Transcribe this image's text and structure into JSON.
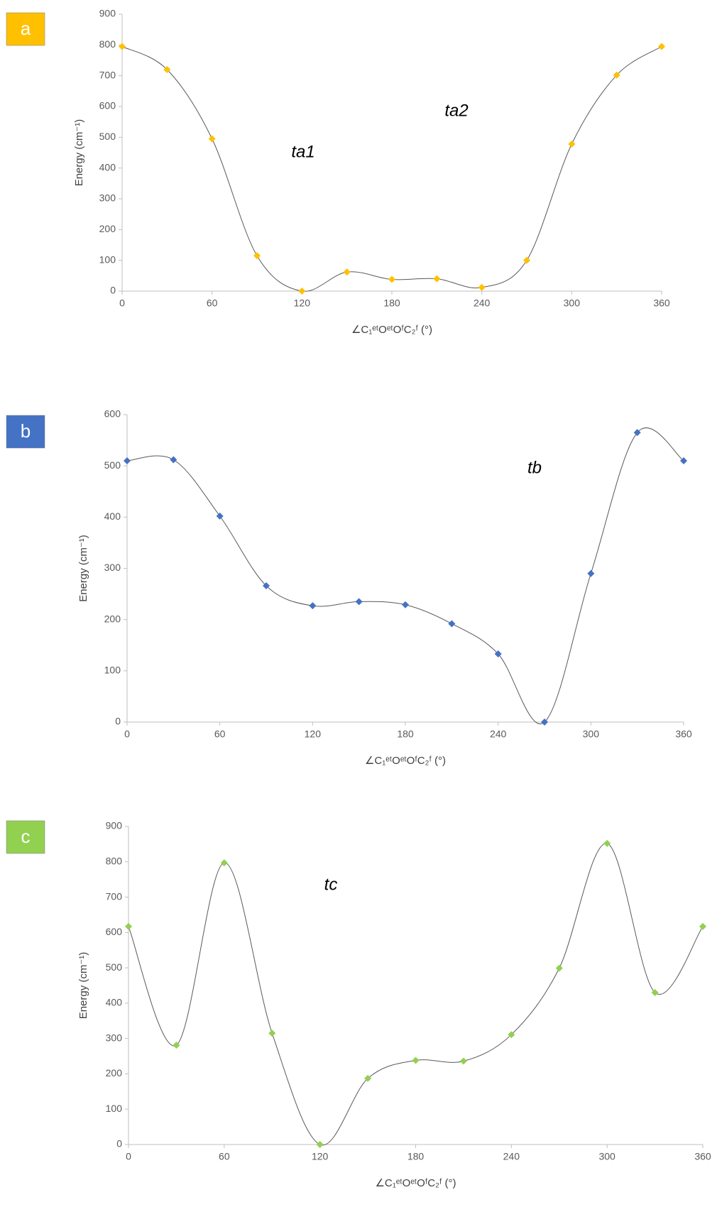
{
  "chart_data": [
    {
      "type": "line",
      "panel_label": "a",
      "annotations": [
        "ta1",
        "ta2"
      ],
      "y_label": "Energy (cm⁻¹)",
      "x_label": "∠C₁ᵉᵗOᵉᵗOᶠC₂ᶠ  (°)",
      "x": [
        0,
        30,
        60,
        90,
        120,
        150,
        180,
        210,
        240,
        270,
        300,
        330,
        360
      ],
      "values": [
        795,
        720,
        495,
        115,
        0,
        62,
        38,
        40,
        12,
        100,
        478,
        702,
        795
      ],
      "color": "#ffc000",
      "xlim": [
        0,
        360
      ],
      "xticks": [
        0,
        60,
        120,
        180,
        240,
        300,
        360
      ],
      "ylim": [
        0,
        900
      ],
      "yticks": [
        0,
        100,
        200,
        300,
        400,
        500,
        600,
        700,
        800,
        900
      ]
    },
    {
      "type": "line",
      "panel_label": "b",
      "annotations": [
        "tb"
      ],
      "y_label": "Energy (cm⁻¹)",
      "x_label": "∠C₁ᵉᵗOᵉᵗOᶠC₂ᶠ  (°)",
      "x": [
        0,
        30,
        60,
        90,
        120,
        150,
        180,
        210,
        240,
        270,
        300,
        330,
        360
      ],
      "values": [
        510,
        512,
        402,
        266,
        227,
        235,
        229,
        192,
        133,
        0,
        290,
        565,
        510
      ],
      "color": "#4472c4",
      "xlim": [
        0,
        360
      ],
      "xticks": [
        0,
        60,
        120,
        180,
        240,
        300,
        360
      ],
      "ylim": [
        0,
        600
      ],
      "yticks": [
        0,
        100,
        200,
        300,
        400,
        500,
        600
      ]
    },
    {
      "type": "line",
      "panel_label": "c",
      "annotations": [
        "tc"
      ],
      "y_label": "Energy (cm⁻¹)",
      "x_label": "∠C₁ᵉᵗOᵉᵗOᶠC₂ᶠ  (°)",
      "x": [
        0,
        30,
        60,
        90,
        120,
        150,
        180,
        210,
        240,
        270,
        300,
        330,
        360
      ],
      "values": [
        617,
        281,
        797,
        315,
        0,
        187,
        238,
        236,
        311,
        499,
        852,
        430,
        617
      ],
      "color": "#92d050",
      "xlim": [
        0,
        360
      ],
      "xticks": [
        0,
        60,
        120,
        180,
        240,
        300,
        360
      ],
      "ylim": [
        0,
        900
      ],
      "yticks": [
        0,
        100,
        200,
        300,
        400,
        500,
        600,
        700,
        800,
        900
      ]
    }
  ]
}
